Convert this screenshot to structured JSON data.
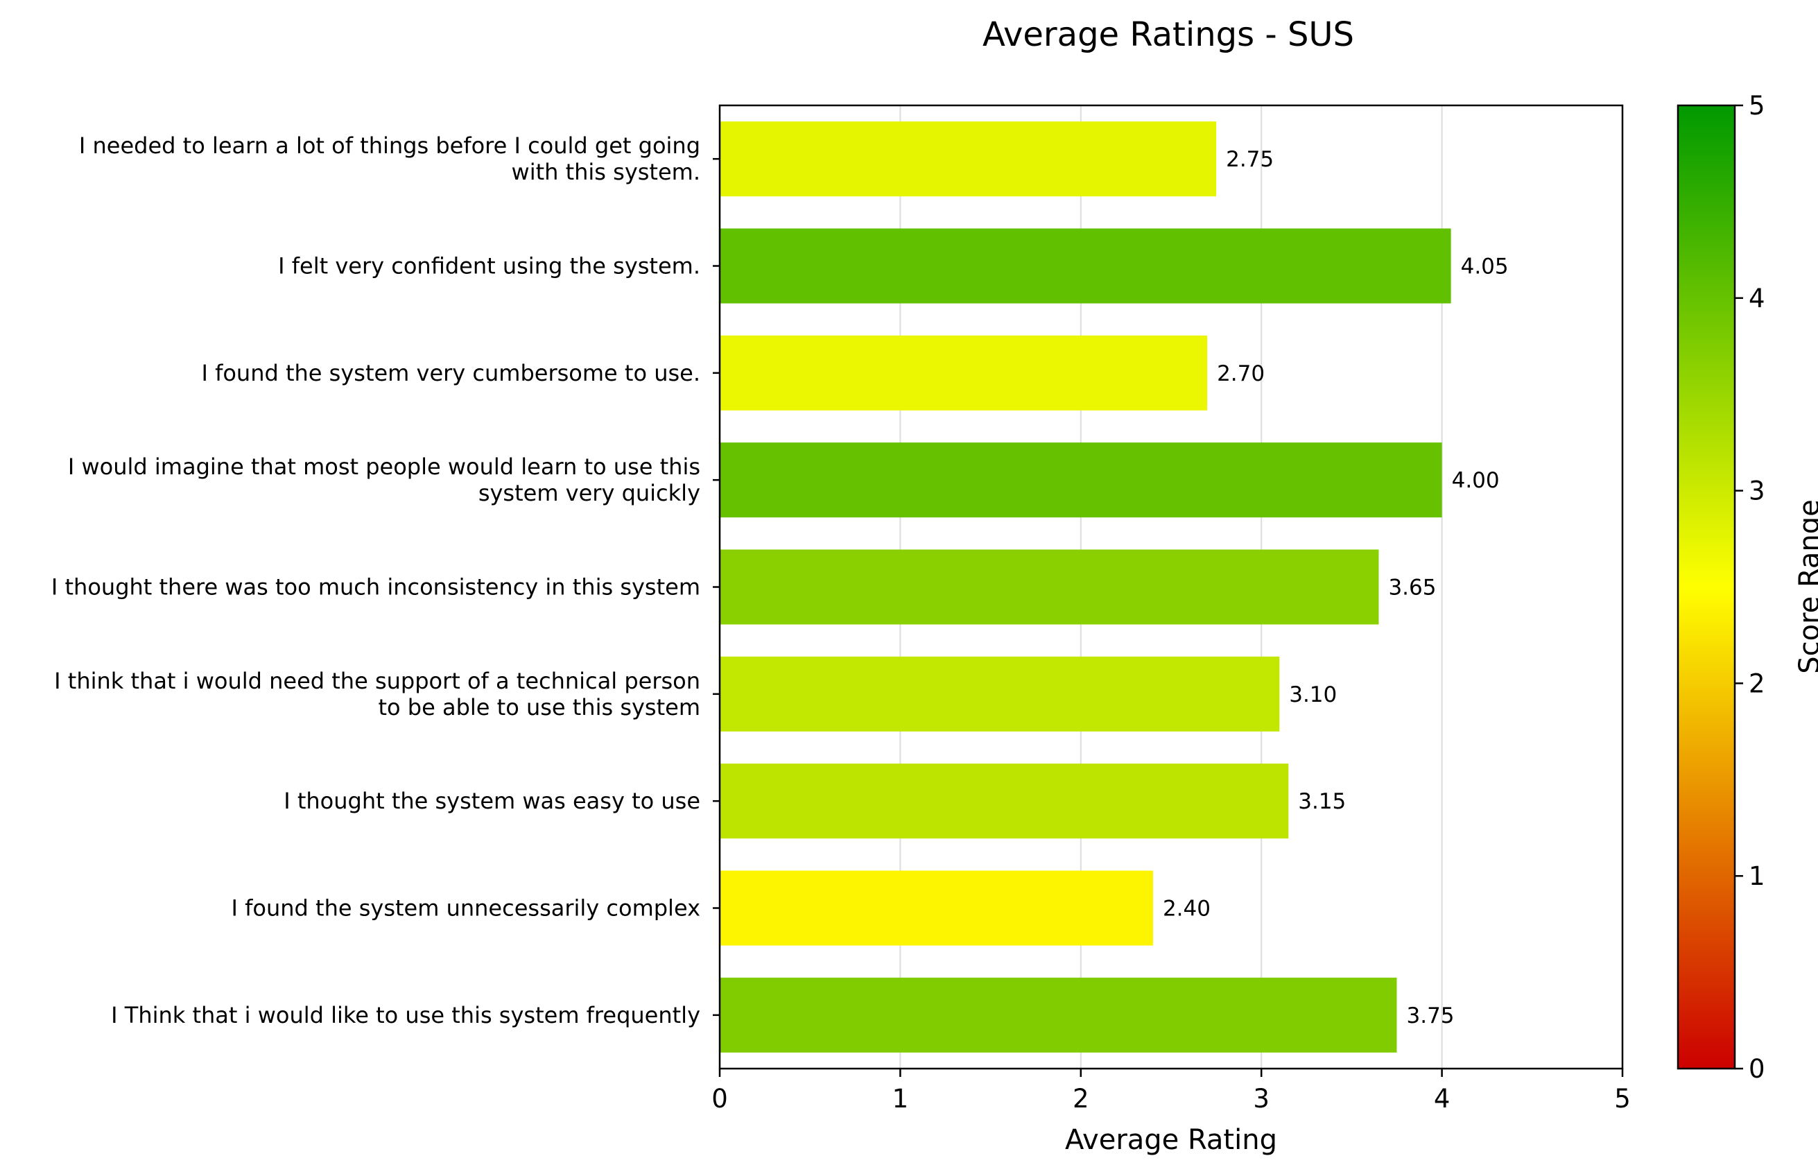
{
  "chart_data": {
    "type": "bar",
    "orientation": "horizontal",
    "title": "Average Ratings - SUS",
    "xlabel": "Average Rating",
    "ylabel": "",
    "xlim": [
      0,
      5
    ],
    "xticks": [
      "0",
      "1",
      "2",
      "3",
      "4",
      "5"
    ],
    "grid": "vertical",
    "categories": [
      [
        "I needed to learn a lot of things before I could get going",
        "with this system."
      ],
      [
        "I felt very confident using the system."
      ],
      [
        "I found the system very cumbersome to use."
      ],
      [
        "I would imagine that most people would learn to use this",
        "system very quickly"
      ],
      [
        "I thought there was too much inconsistency in this system"
      ],
      [
        "I think that i would need the support of a technical person",
        "to be able to use this system"
      ],
      [
        "I thought the system was easy to use"
      ],
      [
        "I found the system unnecessarily complex"
      ],
      [
        "I Think that i would like to use this system frequently"
      ]
    ],
    "values": [
      2.75,
      4.05,
      2.7,
      4.0,
      3.65,
      3.1,
      3.15,
      2.4,
      3.75
    ],
    "value_labels": [
      "2.75",
      "4.05",
      "2.70",
      "4.00",
      "3.65",
      "3.10",
      "3.15",
      "2.40",
      "3.75"
    ],
    "colorbar": {
      "label": "Score Range",
      "range": [
        0,
        5
      ],
      "ticks": [
        "0",
        "1",
        "2",
        "3",
        "4",
        "5"
      ],
      "colors": [
        "#cc0000",
        "#ffff00",
        "#009900"
      ]
    }
  }
}
